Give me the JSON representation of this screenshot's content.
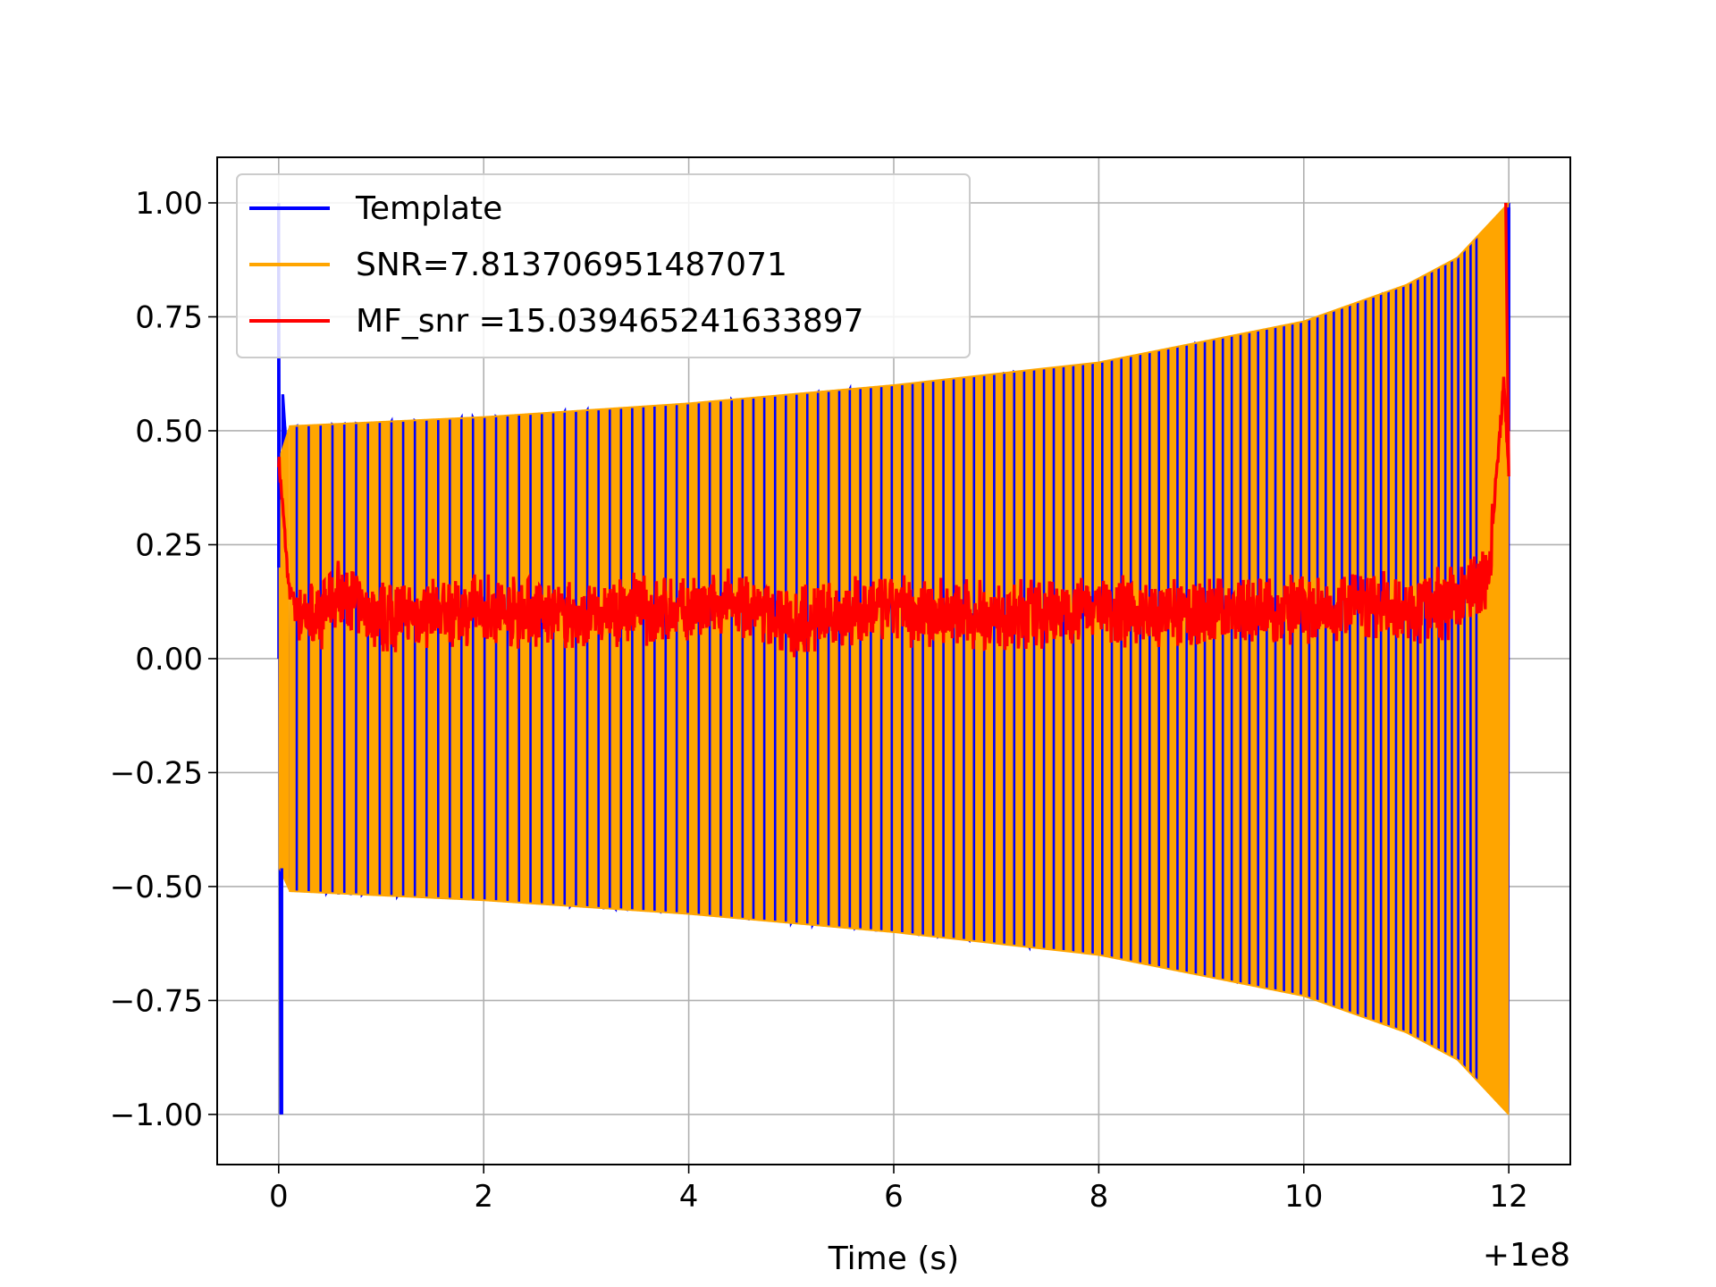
{
  "chart_data": {
    "type": "line",
    "title": "",
    "xlabel": "Time (s)",
    "ylabel": "",
    "x_offset_label": "+1e8",
    "xlim": [
      -0.6,
      12.6
    ],
    "ylim": [
      -1.11,
      1.1
    ],
    "grid": true,
    "legend_placement": "upper-left",
    "x_ticks": [
      0,
      2,
      4,
      6,
      8,
      10,
      12
    ],
    "x_tick_labels": [
      "0",
      "2",
      "4",
      "6",
      "8",
      "10",
      "12"
    ],
    "y_ticks": [
      1.0,
      0.75,
      0.5,
      0.25,
      0.0,
      -0.25,
      -0.5,
      -0.75,
      -1.0
    ],
    "y_tick_labels": [
      "1.00",
      "0.75",
      "0.50",
      "0.25",
      "0.00",
      "−0.25",
      "−0.50",
      "−0.75",
      "−1.00"
    ],
    "series": [
      {
        "name": "Template",
        "color": "#0000ff",
        "description_values": {
          "x_start": 0.0,
          "x_end": 12.0,
          "initial_spike_max": 1.0,
          "initial_spike_min": -1.0,
          "envelope": [
            [
              0.1,
              0.51
            ],
            [
              2,
              0.53
            ],
            [
              4,
              0.56
            ],
            [
              6,
              0.6
            ],
            [
              8,
              0.65
            ],
            [
              10,
              0.74
            ],
            [
              11,
              0.82
            ],
            [
              11.5,
              0.88
            ],
            [
              12.0,
              1.0
            ]
          ],
          "cycles": 128
        }
      },
      {
        "name": "SNR=7.813706951487071",
        "color": "#ffa500",
        "description_values": {
          "x_start": 0.0,
          "x_end": 12.0,
          "envelope": [
            [
              0.1,
              0.51
            ],
            [
              2,
              0.53
            ],
            [
              4,
              0.56
            ],
            [
              6,
              0.6
            ],
            [
              8,
              0.65
            ],
            [
              10,
              0.74
            ],
            [
              11,
              0.82
            ],
            [
              11.5,
              0.88
            ],
            [
              12.0,
              1.0
            ]
          ]
        }
      },
      {
        "name": "MF_snr =15.039465241633897",
        "color": "#ff0000",
        "points": [
          [
            0.0,
            0.44
          ],
          [
            0.05,
            0.3
          ],
          [
            0.1,
            0.15
          ],
          [
            0.2,
            0.1
          ],
          [
            0.4,
            0.09
          ],
          [
            0.6,
            0.15
          ],
          [
            0.8,
            0.11
          ],
          [
            1.0,
            0.09
          ],
          [
            1.5,
            0.1
          ],
          [
            2.0,
            0.11
          ],
          [
            2.5,
            0.1
          ],
          [
            3.0,
            0.09
          ],
          [
            3.5,
            0.11
          ],
          [
            4.0,
            0.1
          ],
          [
            4.5,
            0.12
          ],
          [
            5.0,
            0.08
          ],
          [
            5.5,
            0.1
          ],
          [
            6.0,
            0.11
          ],
          [
            6.5,
            0.1
          ],
          [
            7.0,
            0.09
          ],
          [
            7.5,
            0.1
          ],
          [
            8.0,
            0.12
          ],
          [
            8.5,
            0.09
          ],
          [
            9.0,
            0.1
          ],
          [
            9.5,
            0.11
          ],
          [
            10.0,
            0.1
          ],
          [
            10.5,
            0.12
          ],
          [
            11.0,
            0.1
          ],
          [
            11.5,
            0.13
          ],
          [
            11.8,
            0.18
          ],
          [
            11.95,
            0.6
          ],
          [
            12.0,
            0.42
          ]
        ]
      }
    ]
  }
}
